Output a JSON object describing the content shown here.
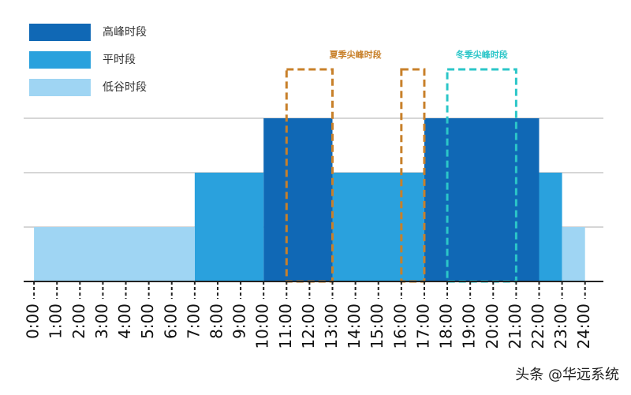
{
  "chart_data": {
    "type": "step-bar",
    "series": [
      {
        "name": "高峰时段",
        "color": "#1068b5",
        "intervals": [
          [
            10,
            13
          ],
          [
            17,
            22
          ]
        ],
        "values": [
          3,
          3
        ]
      },
      {
        "name": "平时段",
        "color": "#2aa1dd",
        "intervals": [
          [
            7,
            10
          ],
          [
            13,
            17
          ],
          [
            22,
            23
          ]
        ],
        "values": [
          2,
          2,
          2
        ]
      },
      {
        "name": "低谷时段",
        "color": "#9fd5f3",
        "intervals": [
          [
            0,
            7
          ],
          [
            23,
            24
          ]
        ],
        "values": [
          1,
          1
        ]
      }
    ],
    "highlights": [
      {
        "label": "夏季尖峰时段",
        "color": "#c8802a",
        "intervals": [
          [
            11,
            13
          ],
          [
            16,
            17
          ]
        ]
      },
      {
        "label": "冬季尖峰时段",
        "color": "#2bc6c8",
        "intervals": [
          [
            18,
            21
          ]
        ]
      }
    ],
    "xlim": [
      -0.45,
      24.8
    ],
    "xticks": [
      {
        "value": 0,
        "label": "0:00"
      },
      {
        "value": 1,
        "label": "1:00"
      },
      {
        "value": 2,
        "label": "2:00"
      },
      {
        "value": 3,
        "label": "3:00"
      },
      {
        "value": 4,
        "label": "4:00"
      },
      {
        "value": 5,
        "label": "5:00"
      },
      {
        "value": 6,
        "label": "6:00"
      },
      {
        "value": 7,
        "label": "7:00"
      },
      {
        "value": 8,
        "label": "8:00"
      },
      {
        "value": 9,
        "label": "9:00"
      },
      {
        "value": 10,
        "label": "10:00"
      },
      {
        "value": 11,
        "label": "11:00"
      },
      {
        "value": 12,
        "label": "12:00"
      },
      {
        "value": 13,
        "label": "13:00"
      },
      {
        "value": 14,
        "label": "14:00"
      },
      {
        "value": 15,
        "label": "15:00"
      },
      {
        "value": 16,
        "label": "16:00"
      },
      {
        "value": 17,
        "label": "17:00"
      },
      {
        "value": 18,
        "label": "18:00"
      },
      {
        "value": 19,
        "label": "19:00"
      },
      {
        "value": 20,
        "label": "20:00"
      },
      {
        "value": 21,
        "label": "21:00"
      },
      {
        "value": 22,
        "label": "22:00"
      },
      {
        "value": 23,
        "label": "23:00"
      },
      {
        "value": 24,
        "label": "24:00"
      }
    ],
    "ylim": [
      0,
      3
    ],
    "gridlines": [
      1,
      2,
      3
    ],
    "watermark": "头条 @华远系统"
  }
}
